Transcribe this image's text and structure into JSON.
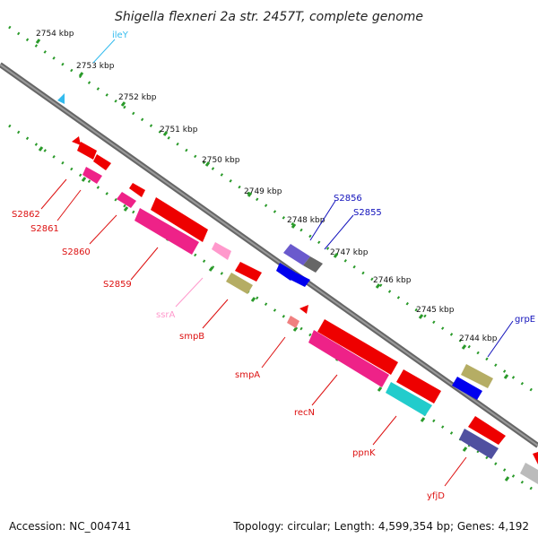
{
  "title": "Shigella flexneri 2a str. 2457T, complete genome",
  "footer": {
    "accession": "Accession: NC_004741",
    "topology": "Topology: circular; Length: 4,599,354 bp; Genes: 4,192"
  },
  "kbp_ticks": [
    "2754 kbp",
    "2753 kbp",
    "2752 kbp",
    "2751 kbp",
    "2750 kbp",
    "2749 kbp",
    "2748 kbp",
    "2747 kbp",
    "2746 kbp",
    "2745 kbp",
    "2744 kbp"
  ],
  "gene_labels": [
    {
      "text": "ileY",
      "color": "#33bbee"
    },
    {
      "text": "S2862",
      "color": "#dd1111"
    },
    {
      "text": "S2861",
      "color": "#dd1111"
    },
    {
      "text": "S2860",
      "color": "#dd1111"
    },
    {
      "text": "S2859",
      "color": "#dd1111"
    },
    {
      "text": "ssrA",
      "color": "#ff99cc"
    },
    {
      "text": "smpB",
      "color": "#dd1111"
    },
    {
      "text": "smpA",
      "color": "#dd1111"
    },
    {
      "text": "recN",
      "color": "#dd1111"
    },
    {
      "text": "ppnK",
      "color": "#dd1111"
    },
    {
      "text": "yfjD",
      "color": "#dd1111"
    },
    {
      "text": "S2856",
      "color": "#1111bb"
    },
    {
      "text": "S2855",
      "color": "#1111bb"
    },
    {
      "text": "grpE",
      "color": "#1111bb"
    }
  ]
}
